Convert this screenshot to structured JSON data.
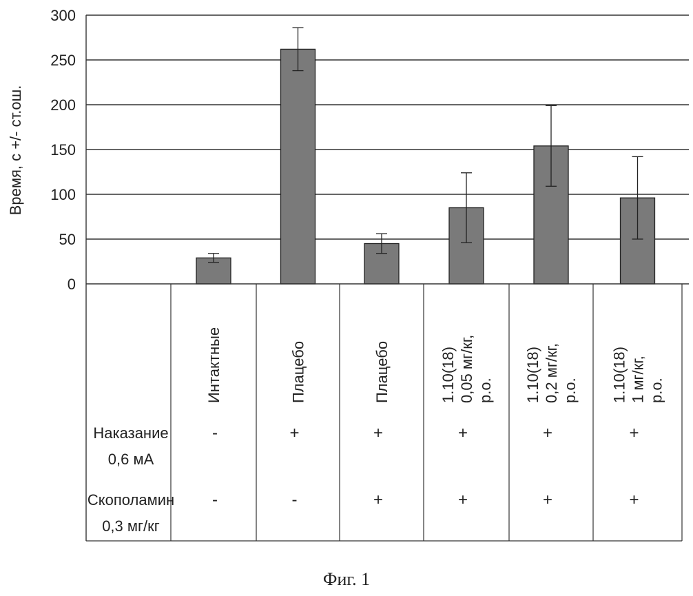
{
  "chart_data": {
    "type": "bar",
    "title": "",
    "ylabel": "Время, с +/- ст.ош.",
    "xlabel": "",
    "ylim": [
      0,
      300
    ],
    "yticks": [
      0,
      50,
      100,
      150,
      200,
      250,
      300
    ],
    "grid": true,
    "categories": [
      [
        "Интактные"
      ],
      [
        "Плацебо"
      ],
      [
        "Плацебо"
      ],
      [
        "1.10(18)",
        "0,05 мг/кг,",
        "p.o."
      ],
      [
        "1.10(18)",
        "0,2 мг/кг,",
        "p.o."
      ],
      [
        "1.10(18)",
        "1 мг/кг,",
        "p.o."
      ]
    ],
    "values": [
      29,
      262,
      45,
      85,
      154,
      96
    ],
    "errors": [
      5,
      24,
      11,
      39,
      45,
      46
    ],
    "bar_color": "#7a7a7a",
    "rows": [
      {
        "label": [
          "Наказание",
          "0,6 мА"
        ],
        "marks": [
          "-",
          "+",
          "+",
          "+",
          "+",
          "+"
        ]
      },
      {
        "label": [
          "Скополамин",
          "0,3 мг/кг"
        ],
        "marks": [
          "-",
          "-",
          "+",
          "+",
          "+",
          "+"
        ]
      }
    ]
  },
  "caption": "Фиг. 1"
}
